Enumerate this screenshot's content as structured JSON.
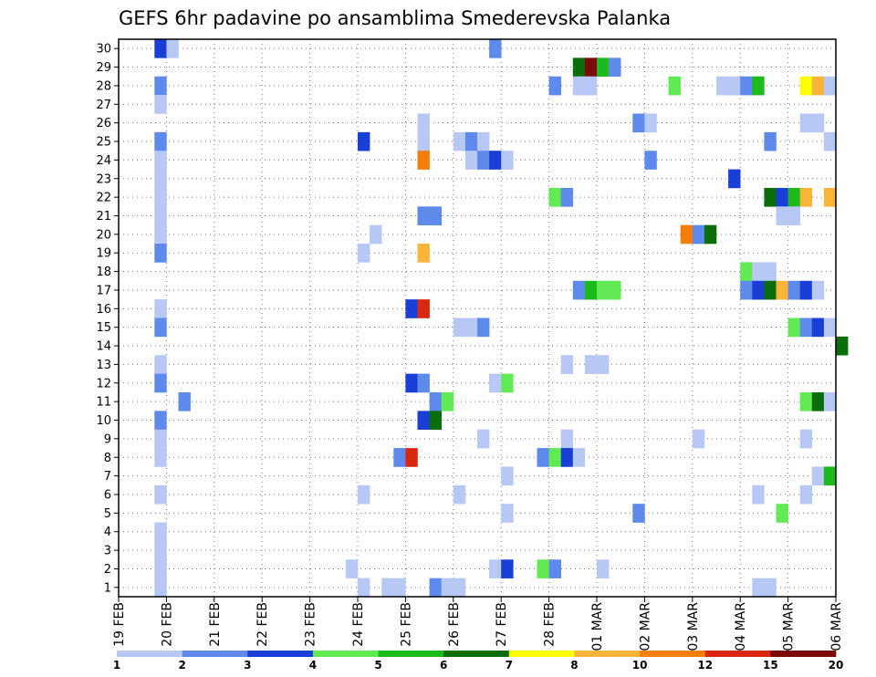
{
  "chart_data": {
    "type": "heatmap",
    "title": "GEFS 6hr padavine po ansamblima Smederevska Palanka",
    "xlabel": "",
    "ylabel": "",
    "y_ticks": [
      "1",
      "2",
      "3",
      "4",
      "5",
      "6",
      "7",
      "8",
      "9",
      "10",
      "11",
      "12",
      "13",
      "14",
      "15",
      "16",
      "17",
      "18",
      "19",
      "20",
      "21",
      "22",
      "23",
      "24",
      "25",
      "26",
      "27",
      "28",
      "29",
      "30"
    ],
    "x_ticks": [
      "19 FEB",
      "20 FEB",
      "21 FEB",
      "22 FEB",
      "23 FEB",
      "24 FEB",
      "25 FEB",
      "26 FEB",
      "27 FEB",
      "28 FEB",
      "01 MAR",
      "02 MAR",
      "03 MAR",
      "04 MAR",
      "05 MAR",
      "06 MAR"
    ],
    "x_range_days": [
      0,
      15
    ],
    "y_range": [
      0.5,
      30.5
    ],
    "grid": true,
    "legend_position": "bottom",
    "legend": {
      "colors": [
        "#b8c8f5",
        "#5e8aec",
        "#1a3fd6",
        "#62ea54",
        "#1cba1c",
        "#0b6e0b",
        "#ffff00",
        "#fbb43a",
        "#f57d0a",
        "#d9280f",
        "#7d0a0a"
      ],
      "labels": [
        "1",
        "2",
        "3",
        "4",
        "5",
        "6",
        "7",
        "8",
        "10",
        "12",
        "15",
        "20"
      ]
    },
    "cell_days": 0.25,
    "cells": [
      {
        "m": 30,
        "t": 0.75,
        "c": 2
      },
      {
        "m": 30,
        "t": 1.0,
        "c": 0
      },
      {
        "m": 30,
        "t": 7.75,
        "c": 1
      },
      {
        "m": 29,
        "t": 9.5,
        "c": 5
      },
      {
        "m": 29,
        "t": 9.75,
        "c": 10
      },
      {
        "m": 29,
        "t": 10.0,
        "c": 4
      },
      {
        "m": 29,
        "t": 10.25,
        "c": 1
      },
      {
        "m": 28,
        "t": 0.75,
        "c": 1
      },
      {
        "m": 28,
        "t": 9.0,
        "c": 1
      },
      {
        "m": 28,
        "t": 9.5,
        "c": 0
      },
      {
        "m": 28,
        "t": 9.75,
        "c": 0
      },
      {
        "m": 28,
        "t": 11.5,
        "c": 3
      },
      {
        "m": 28,
        "t": 12.5,
        "c": 0
      },
      {
        "m": 28,
        "t": 12.75,
        "c": 0
      },
      {
        "m": 28,
        "t": 13.0,
        "c": 1
      },
      {
        "m": 28,
        "t": 13.25,
        "c": 4
      },
      {
        "m": 28,
        "t": 14.25,
        "c": 6
      },
      {
        "m": 28,
        "t": 14.5,
        "c": 7
      },
      {
        "m": 28,
        "t": 14.75,
        "c": 0
      },
      {
        "m": 27,
        "t": 0.75,
        "c": 0
      },
      {
        "m": 26,
        "t": 6.25,
        "c": 0
      },
      {
        "m": 26,
        "t": 10.75,
        "c": 1
      },
      {
        "m": 26,
        "t": 11.0,
        "c": 0
      },
      {
        "m": 26,
        "t": 14.25,
        "c": 0
      },
      {
        "m": 26,
        "t": 14.5,
        "c": 0
      },
      {
        "m": 25,
        "t": 0.75,
        "c": 1
      },
      {
        "m": 25,
        "t": 5.0,
        "c": 2
      },
      {
        "m": 25,
        "t": 6.25,
        "c": 0
      },
      {
        "m": 25,
        "t": 7.0,
        "c": 0
      },
      {
        "m": 25,
        "t": 7.25,
        "c": 1
      },
      {
        "m": 25,
        "t": 7.5,
        "c": 0
      },
      {
        "m": 25,
        "t": 13.5,
        "c": 1
      },
      {
        "m": 25,
        "t": 14.75,
        "c": 0
      },
      {
        "m": 24,
        "t": 0.75,
        "c": 0
      },
      {
        "m": 24,
        "t": 6.25,
        "c": 8
      },
      {
        "m": 24,
        "t": 7.25,
        "c": 0
      },
      {
        "m": 24,
        "t": 7.5,
        "c": 1
      },
      {
        "m": 24,
        "t": 7.75,
        "c": 2
      },
      {
        "m": 24,
        "t": 8.0,
        "c": 0
      },
      {
        "m": 24,
        "t": 11.0,
        "c": 1
      },
      {
        "m": 23,
        "t": 0.75,
        "c": 0
      },
      {
        "m": 23,
        "t": 12.75,
        "c": 2
      },
      {
        "m": 22,
        "t": 0.75,
        "c": 0
      },
      {
        "m": 22,
        "t": 9.0,
        "c": 3
      },
      {
        "m": 22,
        "t": 9.25,
        "c": 1
      },
      {
        "m": 22,
        "t": 13.5,
        "c": 5
      },
      {
        "m": 22,
        "t": 13.75,
        "c": 2
      },
      {
        "m": 22,
        "t": 14.0,
        "c": 4
      },
      {
        "m": 22,
        "t": 14.25,
        "c": 7
      },
      {
        "m": 22,
        "t": 14.75,
        "c": 7
      },
      {
        "m": 21,
        "t": 0.75,
        "c": 0
      },
      {
        "m": 21,
        "t": 6.25,
        "c": 1
      },
      {
        "m": 21,
        "t": 6.5,
        "c": 1
      },
      {
        "m": 21,
        "t": 13.75,
        "c": 0
      },
      {
        "m": 21,
        "t": 14.0,
        "c": 0
      },
      {
        "m": 20,
        "t": 0.75,
        "c": 0
      },
      {
        "m": 20,
        "t": 5.25,
        "c": 0
      },
      {
        "m": 20,
        "t": 11.75,
        "c": 8
      },
      {
        "m": 20,
        "t": 12.0,
        "c": 1
      },
      {
        "m": 20,
        "t": 12.25,
        "c": 5
      },
      {
        "m": 19,
        "t": 0.75,
        "c": 1
      },
      {
        "m": 19,
        "t": 5.0,
        "c": 0
      },
      {
        "m": 19,
        "t": 6.25,
        "c": 7
      },
      {
        "m": 18,
        "t": 13.0,
        "c": 3
      },
      {
        "m": 18,
        "t": 13.25,
        "c": 0
      },
      {
        "m": 18,
        "t": 13.5,
        "c": 0
      },
      {
        "m": 17,
        "t": 9.5,
        "c": 1
      },
      {
        "m": 17,
        "t": 9.75,
        "c": 4
      },
      {
        "m": 17,
        "t": 10.0,
        "c": 3
      },
      {
        "m": 17,
        "t": 10.25,
        "c": 3
      },
      {
        "m": 17,
        "t": 13.0,
        "c": 1
      },
      {
        "m": 17,
        "t": 13.25,
        "c": 2
      },
      {
        "m": 17,
        "t": 13.5,
        "c": 5
      },
      {
        "m": 17,
        "t": 13.75,
        "c": 7
      },
      {
        "m": 17,
        "t": 14.0,
        "c": 1
      },
      {
        "m": 17,
        "t": 14.25,
        "c": 2
      },
      {
        "m": 17,
        "t": 14.5,
        "c": 0
      },
      {
        "m": 16,
        "t": 0.75,
        "c": 0
      },
      {
        "m": 16,
        "t": 6.0,
        "c": 2
      },
      {
        "m": 16,
        "t": 6.25,
        "c": 9
      },
      {
        "m": 15,
        "t": 0.75,
        "c": 1
      },
      {
        "m": 15,
        "t": 7.0,
        "c": 0
      },
      {
        "m": 15,
        "t": 7.25,
        "c": 0
      },
      {
        "m": 15,
        "t": 7.5,
        "c": 1
      },
      {
        "m": 15,
        "t": 14.0,
        "c": 3
      },
      {
        "m": 15,
        "t": 14.25,
        "c": 1
      },
      {
        "m": 15,
        "t": 14.5,
        "c": 2
      },
      {
        "m": 15,
        "t": 14.75,
        "c": 0
      },
      {
        "m": 14,
        "t": 15.0,
        "c": 5
      },
      {
        "m": 13,
        "t": 0.75,
        "c": 0
      },
      {
        "m": 13,
        "t": 9.25,
        "c": 0
      },
      {
        "m": 13,
        "t": 9.75,
        "c": 0
      },
      {
        "m": 13,
        "t": 10.0,
        "c": 0
      },
      {
        "m": 12,
        "t": 0.75,
        "c": 1
      },
      {
        "m": 12,
        "t": 6.0,
        "c": 2
      },
      {
        "m": 12,
        "t": 6.25,
        "c": 1
      },
      {
        "m": 12,
        "t": 7.75,
        "c": 0
      },
      {
        "m": 12,
        "t": 8.0,
        "c": 3
      },
      {
        "m": 11,
        "t": 1.25,
        "c": 1
      },
      {
        "m": 11,
        "t": 6.5,
        "c": 1
      },
      {
        "m": 11,
        "t": 6.75,
        "c": 3
      },
      {
        "m": 11,
        "t": 14.25,
        "c": 3
      },
      {
        "m": 11,
        "t": 14.5,
        "c": 5
      },
      {
        "m": 11,
        "t": 14.75,
        "c": 0
      },
      {
        "m": 10,
        "t": 0.75,
        "c": 1
      },
      {
        "m": 10,
        "t": 6.25,
        "c": 2
      },
      {
        "m": 10,
        "t": 6.5,
        "c": 5
      },
      {
        "m": 9,
        "t": 0.75,
        "c": 0
      },
      {
        "m": 9,
        "t": 7.5,
        "c": 0
      },
      {
        "m": 9,
        "t": 9.25,
        "c": 0
      },
      {
        "m": 9,
        "t": 12.0,
        "c": 0
      },
      {
        "m": 9,
        "t": 14.25,
        "c": 0
      },
      {
        "m": 8,
        "t": 0.75,
        "c": 0
      },
      {
        "m": 8,
        "t": 5.75,
        "c": 1
      },
      {
        "m": 8,
        "t": 6.0,
        "c": 9
      },
      {
        "m": 8,
        "t": 8.75,
        "c": 1
      },
      {
        "m": 8,
        "t": 9.0,
        "c": 3
      },
      {
        "m": 8,
        "t": 9.25,
        "c": 2
      },
      {
        "m": 8,
        "t": 9.5,
        "c": 0
      },
      {
        "m": 7,
        "t": 8.0,
        "c": 0
      },
      {
        "m": 7,
        "t": 14.5,
        "c": 0
      },
      {
        "m": 7,
        "t": 14.75,
        "c": 4
      },
      {
        "m": 6,
        "t": 0.75,
        "c": 0
      },
      {
        "m": 6,
        "t": 5.0,
        "c": 0
      },
      {
        "m": 6,
        "t": 7.0,
        "c": 0
      },
      {
        "m": 6,
        "t": 13.25,
        "c": 0
      },
      {
        "m": 6,
        "t": 14.25,
        "c": 0
      },
      {
        "m": 5,
        "t": 8.0,
        "c": 0
      },
      {
        "m": 5,
        "t": 10.75,
        "c": 1
      },
      {
        "m": 5,
        "t": 13.75,
        "c": 3
      },
      {
        "m": 4,
        "t": 0.75,
        "c": 0
      },
      {
        "m": 3,
        "t": 0.75,
        "c": 0
      },
      {
        "m": 2,
        "t": 0.75,
        "c": 0
      },
      {
        "m": 2,
        "t": 4.75,
        "c": 0
      },
      {
        "m": 2,
        "t": 7.75,
        "c": 0
      },
      {
        "m": 2,
        "t": 8.0,
        "c": 2
      },
      {
        "m": 2,
        "t": 8.75,
        "c": 3
      },
      {
        "m": 2,
        "t": 9.0,
        "c": 1
      },
      {
        "m": 2,
        "t": 10.0,
        "c": 0
      },
      {
        "m": 1,
        "t": 0.75,
        "c": 0
      },
      {
        "m": 1,
        "t": 5.0,
        "c": 0
      },
      {
        "m": 1,
        "t": 5.5,
        "c": 0
      },
      {
        "m": 1,
        "t": 5.75,
        "c": 0
      },
      {
        "m": 1,
        "t": 6.5,
        "c": 1
      },
      {
        "m": 1,
        "t": 6.75,
        "c": 0
      },
      {
        "m": 1,
        "t": 7.0,
        "c": 0
      },
      {
        "m": 1,
        "t": 13.25,
        "c": 0
      },
      {
        "m": 1,
        "t": 13.5,
        "c": 0
      }
    ]
  }
}
